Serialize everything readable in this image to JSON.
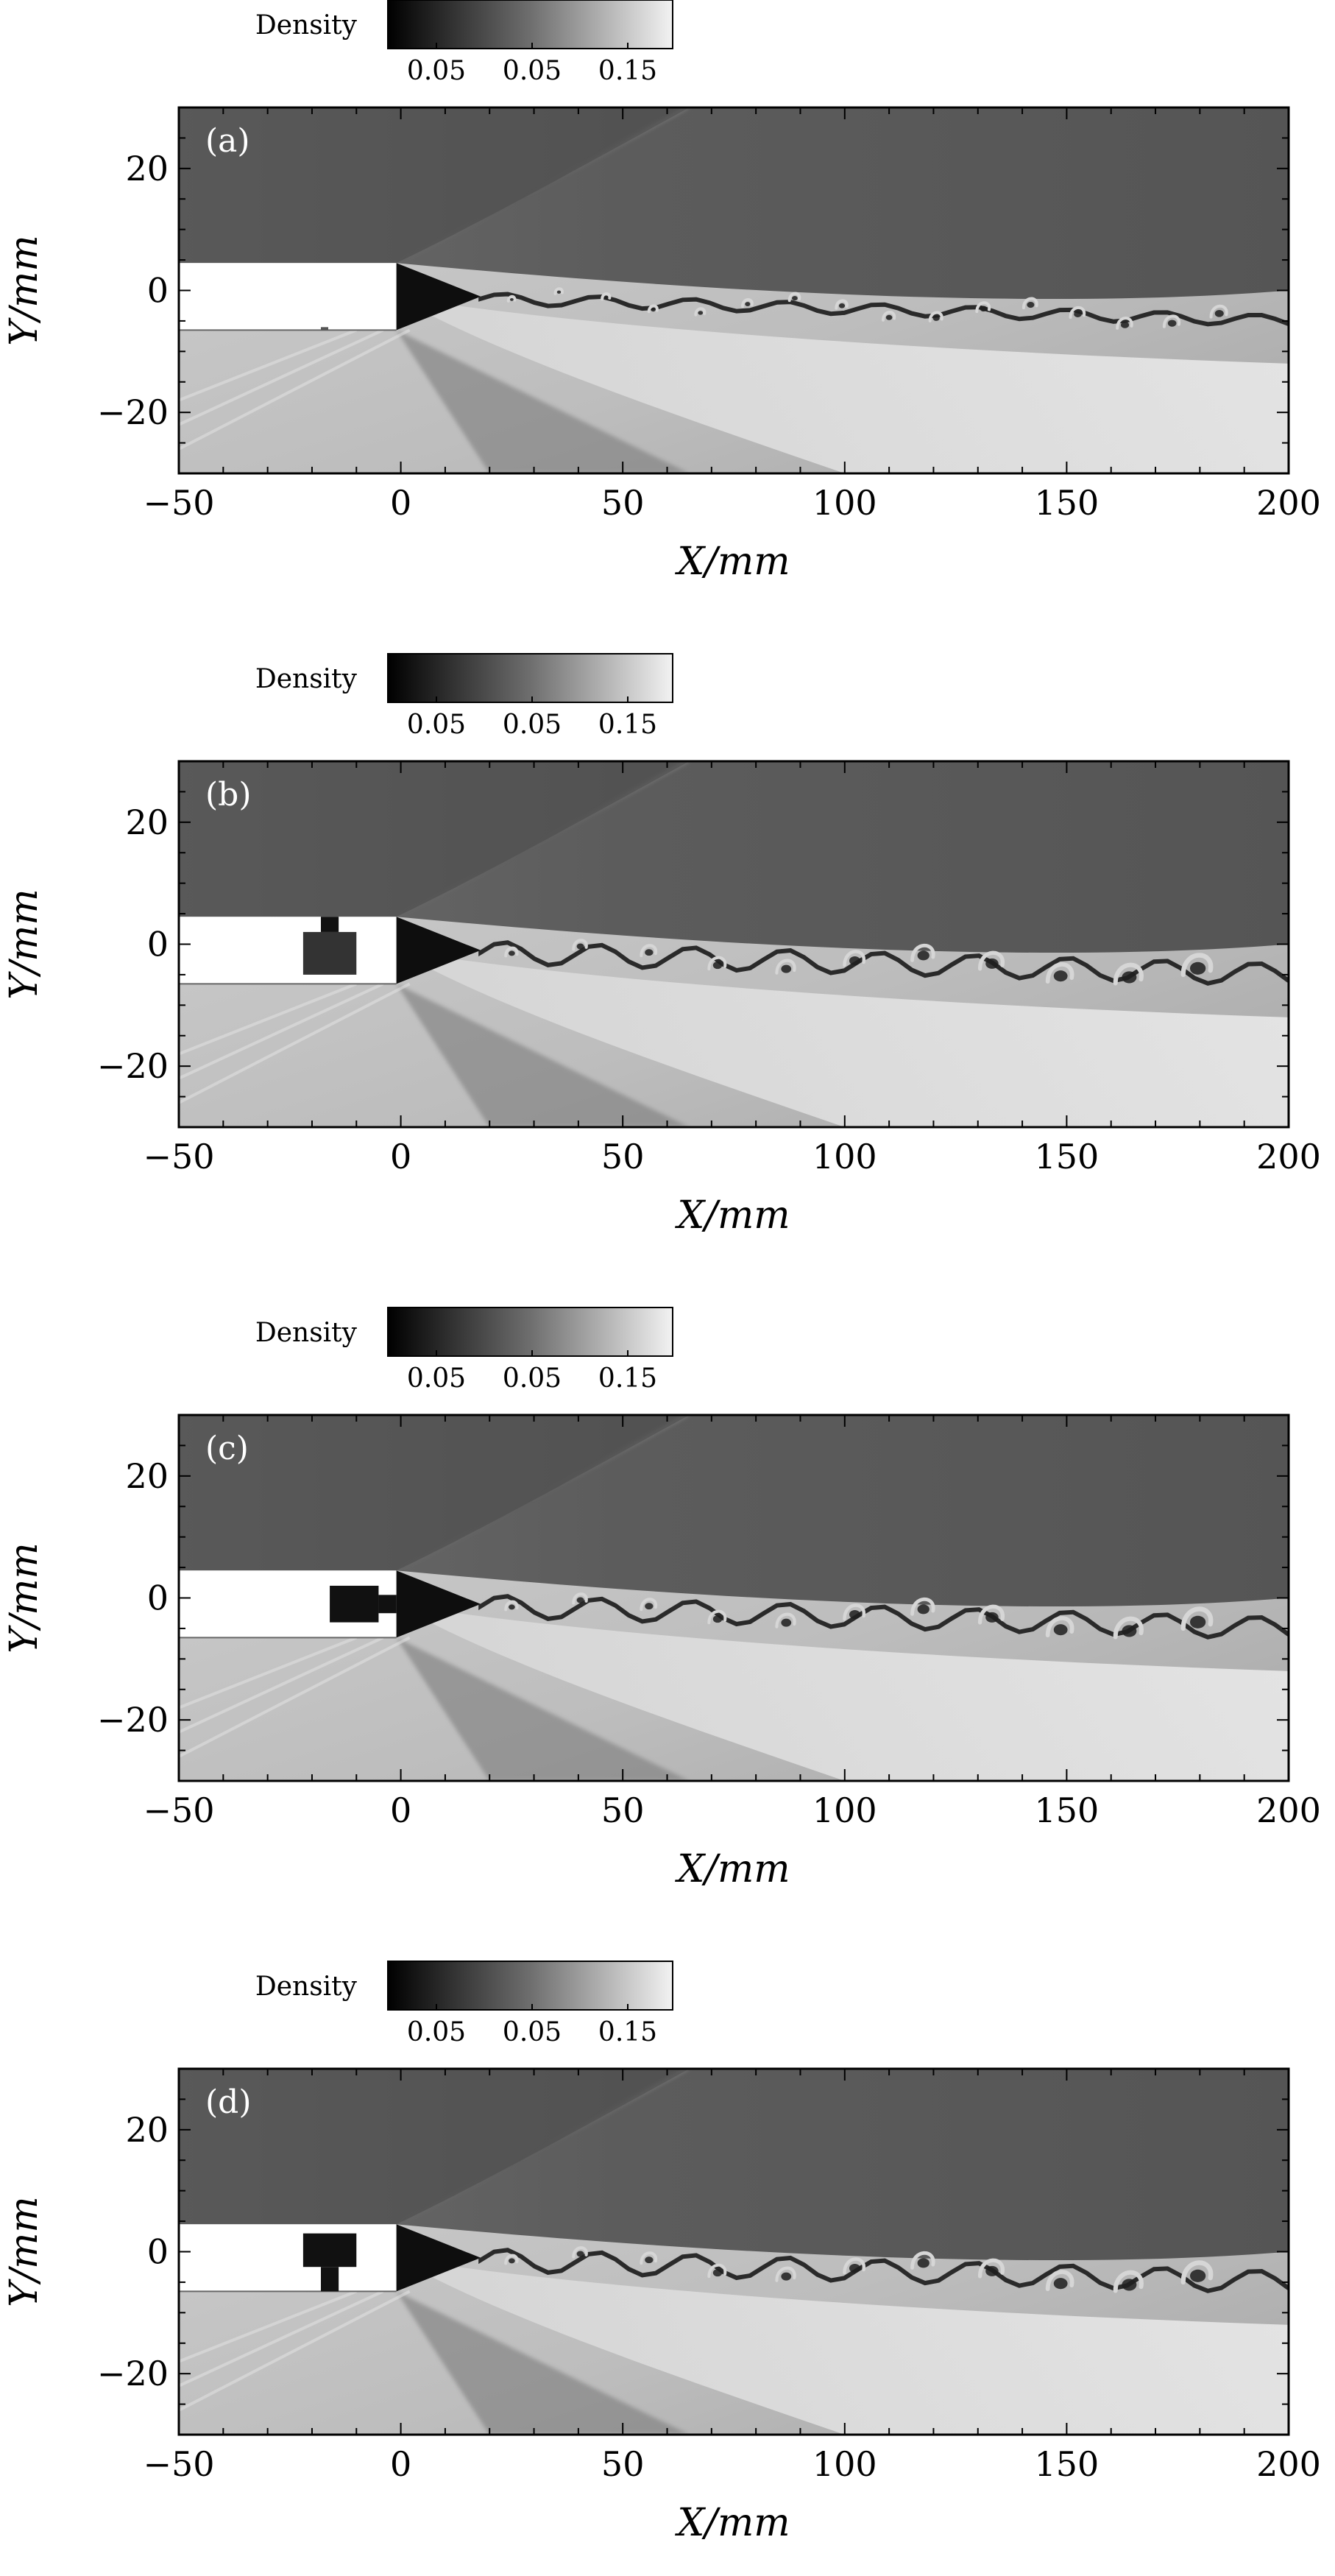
{
  "chart_data": [
    {
      "type": "heatmap",
      "panel_label": "(a)",
      "xlabel": "X/mm",
      "ylabel": "Y/mm",
      "xlim": [
        -50,
        200
      ],
      "ylim": [
        -30,
        30
      ],
      "xticks": [
        -50,
        0,
        50,
        100,
        150,
        200
      ],
      "yticks": [
        -20,
        0,
        20
      ],
      "xticklabels": [
        "−50",
        "0",
        "50",
        "100",
        "150",
        "200"
      ],
      "yticklabels": [
        "−20",
        "0",
        "20"
      ],
      "colorbar": {
        "label": "Density",
        "ticklabels": [
          "0.05",
          "0.05",
          "0.15"
        ]
      },
      "cavity": "none"
    },
    {
      "type": "heatmap",
      "panel_label": "(b)",
      "xlabel": "X/mm",
      "ylabel": "Y/mm",
      "xlim": [
        -50,
        200
      ],
      "ylim": [
        -30,
        30
      ],
      "xticks": [
        -50,
        0,
        50,
        100,
        150,
        200
      ],
      "yticks": [
        -20,
        0,
        20
      ],
      "xticklabels": [
        "−50",
        "0",
        "50",
        "100",
        "150",
        "200"
      ],
      "yticklabels": [
        "−20",
        "0",
        "20"
      ],
      "colorbar": {
        "label": "Density",
        "ticklabels": [
          "0.05",
          "0.05",
          "0.15"
        ]
      },
      "cavity": "up"
    },
    {
      "type": "heatmap",
      "panel_label": "(c)",
      "xlabel": "X/mm",
      "ylabel": "Y/mm",
      "xlim": [
        -50,
        200
      ],
      "ylim": [
        -30,
        30
      ],
      "xticks": [
        -50,
        0,
        50,
        100,
        150,
        200
      ],
      "yticks": [
        -20,
        0,
        20
      ],
      "xticklabels": [
        "−50",
        "0",
        "50",
        "100",
        "150",
        "200"
      ],
      "yticklabels": [
        "−20",
        "0",
        "20"
      ],
      "colorbar": {
        "label": "Density",
        "ticklabels": [
          "0.05",
          "0.05",
          "0.15"
        ]
      },
      "cavity": "right"
    },
    {
      "type": "heatmap",
      "panel_label": "(d)",
      "xlabel": "X/mm",
      "ylabel": "Y/mm",
      "xlim": [
        -50,
        200
      ],
      "ylim": [
        -30,
        30
      ],
      "xticks": [
        -50,
        0,
        50,
        100,
        150,
        200
      ],
      "yticks": [
        -20,
        0,
        20
      ],
      "xticklabels": [
        "−50",
        "0",
        "50",
        "100",
        "150",
        "200"
      ],
      "yticklabels": [
        "−20",
        "0",
        "20"
      ],
      "colorbar": {
        "label": "Density",
        "ticklabels": [
          "0.05",
          "0.05",
          "0.15"
        ]
      },
      "cavity": "down"
    }
  ],
  "colors": {
    "upper_stream": "#5a5a5a",
    "lower_stream": "#d4d4d4",
    "mixing_layer": "#e8e8e8",
    "vortex_core": "#1e1e1e",
    "plate": "#ffffff",
    "dark_expansion": "#0e0e0e"
  }
}
